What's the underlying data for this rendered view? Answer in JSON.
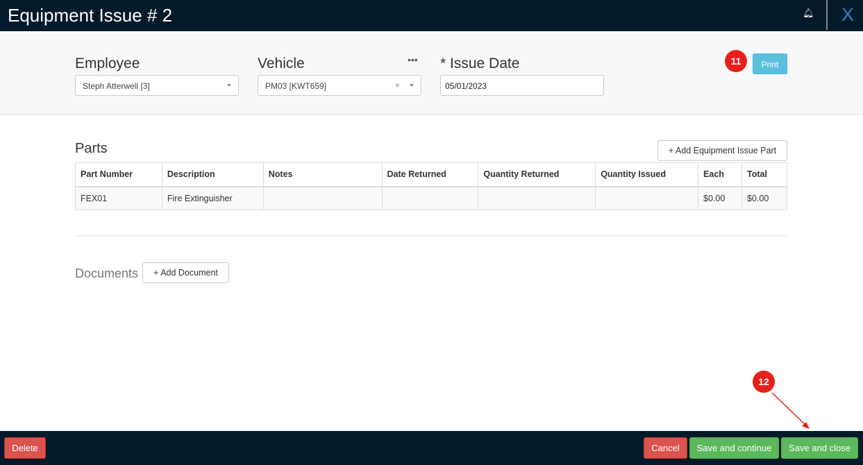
{
  "header": {
    "title": "Equipment Issue # 2",
    "close_label": "X",
    "bell_icon": "bell-icon"
  },
  "form": {
    "employee_label": "Employee",
    "employee_value": "Steph Atterwell [3]",
    "vehicle_label": "Vehicle",
    "vehicle_value": "PM03 [KWT659]",
    "vehicle_clear": "×",
    "more": "•••",
    "issue_date_label": "* Issue Date",
    "issue_date_value": "05/01/2023",
    "print_label": "Print"
  },
  "annotations": {
    "badge_11": "11",
    "badge_12": "12"
  },
  "parts": {
    "title": "Parts",
    "add_label": "+  Add Equipment Issue Part",
    "columns": [
      "Part Number",
      "Description",
      "Notes",
      "Date Returned",
      "Quantity Returned",
      "Quantity Issued",
      "Each",
      "Total"
    ],
    "rows": [
      [
        "FEX01",
        "Fire Extinguisher",
        "",
        "",
        "",
        "",
        "$0.00",
        "$0.00"
      ]
    ]
  },
  "documents": {
    "title": "Documents",
    "add_label": "+  Add Document"
  },
  "footer": {
    "delete": "Delete",
    "cancel": "Cancel",
    "save_continue": "Save and continue",
    "save_close": "Save and close"
  }
}
